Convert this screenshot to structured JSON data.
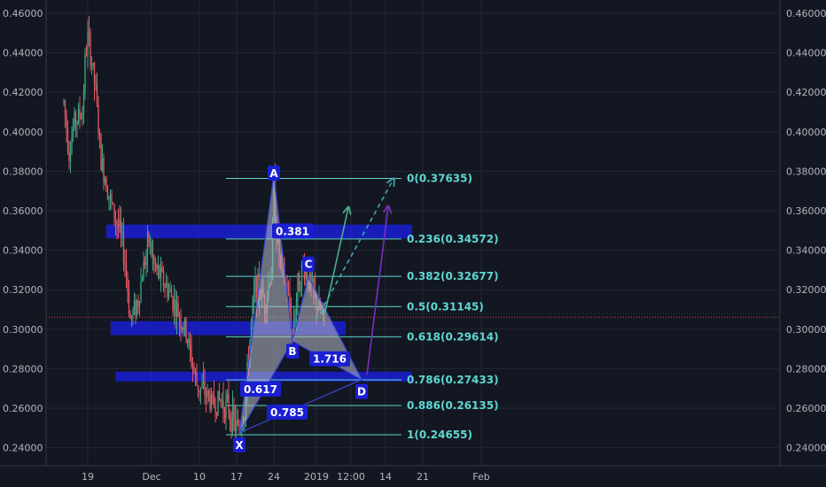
{
  "chart_data": {
    "type": "candlestick",
    "y_ticks": [
      "0.46000",
      "0.44000",
      "0.42000",
      "0.40000",
      "0.38000",
      "0.36000",
      "0.34000",
      "0.32000",
      "0.30000",
      "0.28000",
      "0.26000",
      "0.24000"
    ],
    "y_tick_values": [
      0.46,
      0.44,
      0.42,
      0.4,
      0.38,
      0.36,
      0.34,
      0.32,
      0.3,
      0.28,
      0.26,
      0.24
    ],
    "ylim": [
      0.2325,
      0.4665
    ],
    "x_ticks": [
      {
        "label": "19",
        "day": 0
      },
      {
        "label": "Dec",
        "day": 12
      },
      {
        "label": "10",
        "day": 21
      },
      {
        "label": "17",
        "day": 28
      },
      {
        "label": "24",
        "day": 35
      },
      {
        "label": "2019",
        "day": 43
      },
      {
        "label": "12:00",
        "day": 49.5
      },
      {
        "label": "14",
        "day": 56
      },
      {
        "label": "21",
        "day": 63
      },
      {
        "label": "Feb",
        "day": 74
      }
    ],
    "xlim": [
      -4.5,
      76.5
    ],
    "current_price": 0.3061,
    "fib_levels": [
      {
        "label": "0(0.37635)",
        "value": 0.37635
      },
      {
        "label": "0.236(0.34572)",
        "value": 0.34572
      },
      {
        "label": "0.382(0.32677)",
        "value": 0.32677
      },
      {
        "label": "0.5(0.31145)",
        "value": 0.31145
      },
      {
        "label": "0.618(0.29614)",
        "value": 0.29614
      },
      {
        "label": "0.786(0.27433)",
        "value": 0.27433
      },
      {
        "label": "0.886(0.26135)",
        "value": 0.26135
      },
      {
        "label": "1(0.24655)",
        "value": 0.24655
      }
    ],
    "fib_range": [
      26,
      59
    ],
    "zones": [
      {
        "y_low": 0.346,
        "y_high": 0.353,
        "x_start": 3.5,
        "x_end": 61
      },
      {
        "y_low": 0.297,
        "y_high": 0.304,
        "x_start": 4.3,
        "x_end": 48.5
      },
      {
        "y_low": 0.2735,
        "y_high": 0.2785,
        "x_start": 5.2,
        "x_end": 61
      }
    ],
    "pattern_points": [
      {
        "label": "X",
        "day": 28.5,
        "value": 0.2475
      },
      {
        "label": "A",
        "day": 35.0,
        "value": 0.378
      },
      {
        "label": "B",
        "day": 38.5,
        "value": 0.294
      },
      {
        "label": "C",
        "day": 41.5,
        "value": 0.3265
      },
      {
        "label": "D",
        "day": 51.5,
        "value": 0.2745
      }
    ],
    "ratio_labels": [
      {
        "label": "0.381",
        "day": 38.5,
        "value": 0.3495
      },
      {
        "label": "0.617",
        "day": 32.5,
        "value": 0.2695
      },
      {
        "label": "1.716",
        "day": 45.5,
        "value": 0.2848
      },
      {
        "label": "0.785",
        "day": 37.5,
        "value": 0.2578
      }
    ],
    "arrows": [
      {
        "color": "#4caf8e",
        "from": [
          44.5,
          0.307
        ],
        "to": [
          49.0,
          0.3615
        ],
        "dashed": false
      },
      {
        "color": "#3fa9b5",
        "from": [
          43.0,
          0.305
        ],
        "to": [
          57.5,
          0.376
        ],
        "dashed": true
      },
      {
        "color": "#7b2fbe",
        "from": [
          52.5,
          0.277
        ],
        "to": [
          56.5,
          0.362
        ],
        "dashed": false
      }
    ],
    "grid": true
  }
}
